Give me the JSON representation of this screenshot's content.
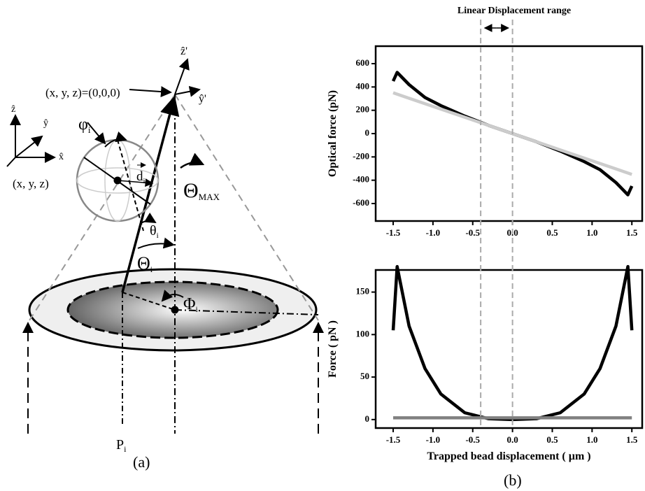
{
  "linear_range": {
    "label": "Linear Displacement range",
    "x": [
      -0.4,
      0
    ]
  },
  "diagram": {
    "labels": [
      {
        "text": "(x, y, z)=(0,0,0)"
      },
      {
        "text": "ẑ'"
      },
      {
        "text": "ŷ'"
      },
      {
        "text": "ẑ"
      },
      {
        "text": "ŷ"
      },
      {
        "text": "x̂"
      },
      {
        "text": "(x, y, z)"
      },
      {
        "text": "φ",
        "sub": "i"
      },
      {
        "text": "d",
        "sub": "i"
      },
      {
        "text": "Θ",
        "sub": "MAX"
      },
      {
        "text": "θ",
        "sub": "i"
      },
      {
        "text": "Θ",
        "sub": "i"
      },
      {
        "text": "Φ",
        "sub": "i"
      },
      {
        "text": "P",
        "sub": "i"
      },
      {
        "text": "(a)"
      },
      {
        "text": "(b)"
      }
    ]
  },
  "chart_data": [
    {
      "type": "line",
      "y_label": "Optical force (pN)",
      "x": [
        -1.5,
        -1.45,
        -1.3,
        -1.1,
        -0.9,
        -0.6,
        -0.3,
        0,
        0.3,
        0.6,
        0.9,
        1.1,
        1.3,
        1.45,
        1.5
      ],
      "series": [
        {
          "color": "#000000",
          "values": [
            450,
            525,
            420,
            310,
            240,
            150,
            70,
            0,
            -70,
            -150,
            -240,
            -310,
            -420,
            -525,
            -450
          ]
        },
        {
          "color": "#cccccc",
          "values": [
            350,
            338.3,
            303.3,
            256.7,
            210,
            140,
            70,
            0,
            -70,
            -140,
            -210,
            -256.7,
            -303.3,
            -338.3,
            -350
          ]
        }
      ],
      "xlim": [
        -1.72,
        1.63
      ],
      "ylim": [
        -750,
        750
      ],
      "xticks": [
        -1.5,
        {
          "value": -1,
          "label": "-1.0"
        },
        -0.5,
        {
          "value": 0,
          "label": "0.0"
        },
        0.5,
        {
          "value": 1,
          "label": "1.0"
        },
        1.5
      ],
      "yticks": [
        600,
        400,
        200,
        0,
        -200,
        -400,
        -600
      ]
    },
    {
      "type": "line",
      "y_label": "Force ( pN )",
      "x_label": "Trapped bead displacement ( µm )",
      "x": [
        -1.5,
        -1.45,
        -1.3,
        -1.1,
        -0.9,
        -0.6,
        -0.3,
        0,
        0.3,
        0.6,
        0.9,
        1.1,
        1.3,
        1.45,
        1.5
      ],
      "series": [
        {
          "color": "#000000",
          "values": [
            105,
            180,
            110,
            60,
            30,
            8,
            1,
            0,
            1,
            8,
            30,
            60,
            110,
            180,
            105
          ]
        },
        {
          "color": "#808080",
          "values": [
            2,
            2,
            2,
            2,
            2,
            2,
            2,
            2,
            2,
            2,
            2,
            2,
            2,
            2,
            2
          ]
        }
      ],
      "xlim": [
        -1.72,
        1.63
      ],
      "ylim": [
        -10,
        176
      ],
      "xticks": [
        -1.5,
        {
          "value": -1,
          "label": "-1.0"
        },
        -0.5,
        {
          "value": 0,
          "label": "0.0"
        },
        0.5,
        {
          "value": 1,
          "label": "1.0"
        },
        1.5
      ],
      "yticks": [
        0,
        50,
        100,
        150
      ]
    }
  ]
}
